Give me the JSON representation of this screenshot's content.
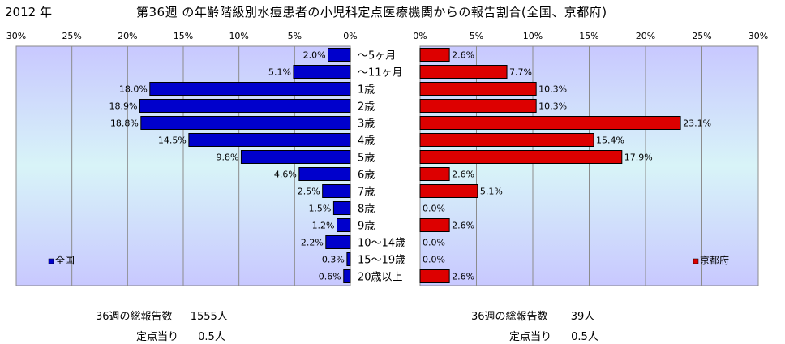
{
  "header": {
    "year": "2012 年",
    "title": "第36週 の年齢階級別水痘患者の小児科定点医療機関からの報告割合(全国、京都府)"
  },
  "chart_data": {
    "type": "bar",
    "orientation": "horizontal",
    "categories": [
      "～5ヶ月",
      "～11ヶ月",
      "1歳",
      "2歳",
      "3歳",
      "4歳",
      "5歳",
      "6歳",
      "7歳",
      "8歳",
      "9歳",
      "10～14歳",
      "15～19歳",
      "20歳以上"
    ],
    "axis": {
      "ticks": [
        0,
        5,
        10,
        15,
        20,
        25,
        30
      ],
      "tick_labels": [
        "0%",
        "5%",
        "10%",
        "15%",
        "20%",
        "25%",
        "30%"
      ],
      "xlim": [
        0,
        30
      ],
      "grid": true
    },
    "series": [
      {
        "name": "全国",
        "color": "#0000cc",
        "direction": "left",
        "values": [
          2.0,
          5.1,
          18.0,
          18.9,
          18.8,
          14.5,
          9.8,
          4.6,
          2.5,
          1.5,
          1.2,
          2.2,
          0.3,
          0.6
        ],
        "labels": [
          "2.0%",
          "5.1%",
          "18.0%",
          "18.9%",
          "18.8%",
          "14.5%",
          "9.8%",
          "4.6%",
          "2.5%",
          "1.5%",
          "1.2%",
          "2.2%",
          "0.3%",
          "0.6%"
        ]
      },
      {
        "name": "京都府",
        "color": "#dd0000",
        "direction": "right",
        "values": [
          2.6,
          7.7,
          10.3,
          10.3,
          23.1,
          15.4,
          17.9,
          2.6,
          5.1,
          0.0,
          2.6,
          0.0,
          0.0,
          2.6
        ],
        "labels": [
          "2.6%",
          "7.7%",
          "10.3%",
          "10.3%",
          "23.1%",
          "15.4%",
          "17.9%",
          "2.6%",
          "5.1%",
          "0.0%",
          "2.6%",
          "0.0%",
          "0.0%",
          "2.6%"
        ]
      }
    ]
  },
  "summary": {
    "national": {
      "total_label": "36週の総報告数",
      "total_value": "1555人",
      "per_label": "定点当り",
      "per_value": "0.5人"
    },
    "kyoto": {
      "total_label": "36週の総報告数",
      "total_value": "39人",
      "per_label": "定点当り",
      "per_value": "0.5人"
    }
  }
}
